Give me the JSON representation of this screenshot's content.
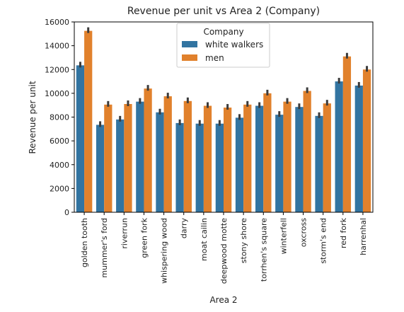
{
  "chart_data": {
    "type": "bar",
    "title": "Revenue per unit vs Area 2 (Company)",
    "xlabel": "Area 2",
    "ylabel": "Revenue per unit",
    "ylim": [
      0,
      16000
    ],
    "yticks": [
      0,
      2000,
      4000,
      6000,
      8000,
      10000,
      12000,
      14000,
      16000
    ],
    "grid": false,
    "legend_title": "Company",
    "legend_position": "top-center",
    "categories": [
      "golden tooth",
      "mummer's ford",
      "riverrun",
      "green fork",
      "whispering wood",
      "darry",
      "moat cailin",
      "deepwood motte",
      "stony shore",
      "torrhen's square",
      "winterfell",
      "oxcross",
      "storm's end",
      "red fork",
      "harrenhal"
    ],
    "series": [
      {
        "name": "white walkers",
        "color": "#3274a1",
        "values": [
          12350,
          7350,
          7800,
          9300,
          8400,
          7500,
          7450,
          7450,
          7950,
          8950,
          8200,
          8850,
          8100,
          11000,
          10650
        ]
      },
      {
        "name": "men",
        "color": "#e1812c",
        "values": [
          15250,
          9050,
          9100,
          10400,
          9750,
          9350,
          8950,
          8800,
          9050,
          10000,
          9300,
          10200,
          9150,
          13100,
          12000
        ]
      }
    ],
    "error_color": "#3b3b3b"
  }
}
